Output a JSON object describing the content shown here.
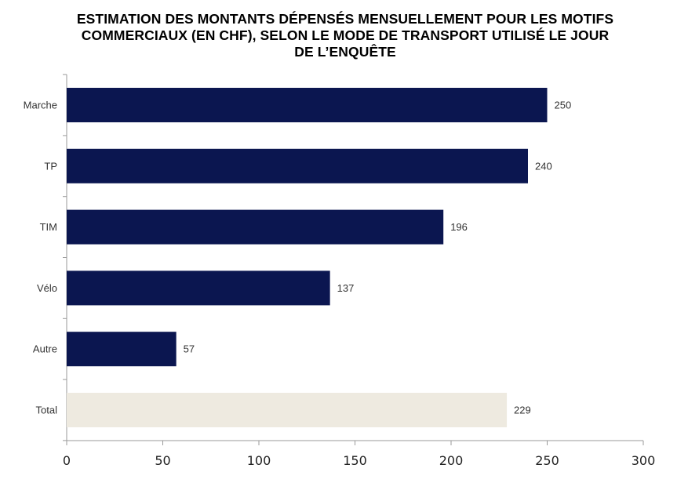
{
  "chart_data": {
    "type": "bar",
    "orientation": "horizontal",
    "title_lines": [
      "ESTIMATION DES MONTANTS DÉPENSÉS MENSUELLEMENT POUR LES MOTIFS",
      "COMMERCIAUX (EN CHF), SELON LE MODE DE TRANSPORT UTILISÉ LE JOUR",
      "DE L’ENQUÊTE"
    ],
    "categories": [
      "Marche",
      "TP",
      "TIM",
      "Vélo",
      "Autre",
      "Total"
    ],
    "values": [
      250,
      240,
      196,
      137,
      57,
      229
    ],
    "colors": [
      "#0b1650",
      "#0b1650",
      "#0b1650",
      "#0b1650",
      "#0b1650",
      "#eeeae0"
    ],
    "xlim": [
      0,
      300
    ],
    "xticks": [
      0,
      50,
      100,
      150,
      200,
      250,
      300
    ],
    "xlabel": "",
    "ylabel": "",
    "grid": false,
    "data_labels": true
  }
}
